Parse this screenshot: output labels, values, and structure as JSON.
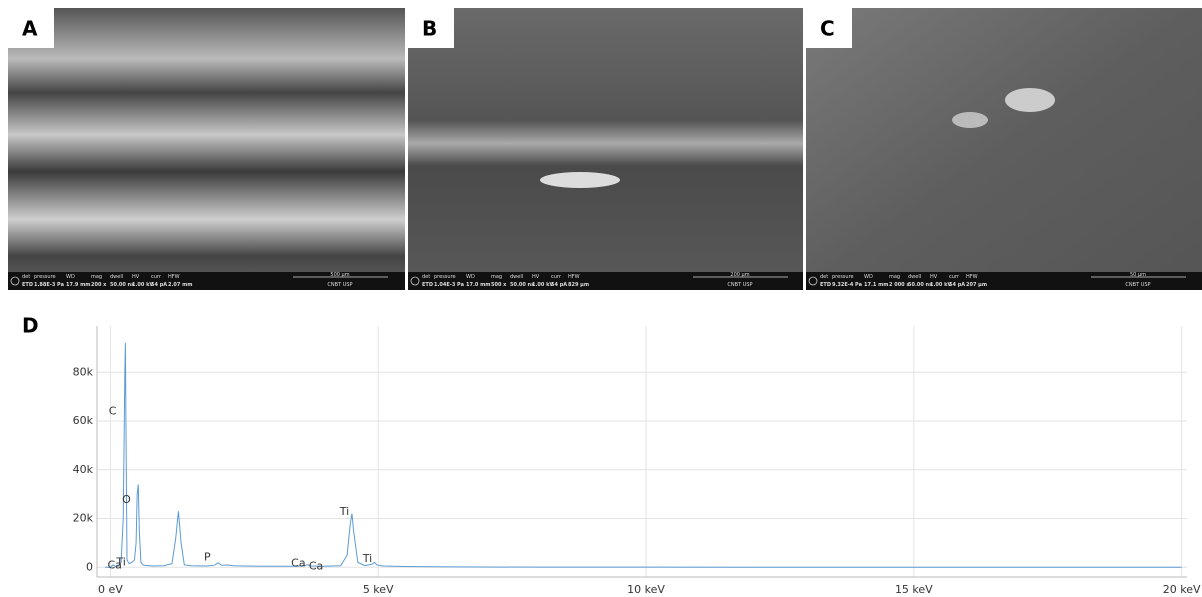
{
  "panels": [
    {
      "label": "A",
      "info_header": [
        "det",
        "pressure",
        "WD",
        "mag",
        "dwell",
        "HV",
        "curr",
        "HFW"
      ],
      "info_values": [
        "ETD",
        "1.88E-3 Pa",
        "17.9 mm",
        "200 x",
        "50.00 ns",
        "1.00 kV",
        "54 pA",
        "2.07 mm"
      ],
      "scale": "500 µm",
      "facility": "CNBT USP"
    },
    {
      "label": "B",
      "info_header": [
        "det",
        "pressure",
        "WD",
        "mag",
        "dwell",
        "HV",
        "curr",
        "HFW"
      ],
      "info_values": [
        "ETD",
        "1.04E-3 Pa",
        "17.0 mm",
        "500 x",
        "50.00 ns",
        "1.00 kV",
        "54 pA",
        "829 µm"
      ],
      "scale": "200 µm",
      "facility": "CNBT USP"
    },
    {
      "label": "C",
      "info_header": [
        "det",
        "pressure",
        "WD",
        "mag",
        "dwell",
        "HV",
        "curr",
        "HFW"
      ],
      "info_values": [
        "ETD",
        "9.32E-4 Pa",
        "17.1 mm",
        "2 000 x",
        "50.00 ns",
        "1.00 kV",
        "54 pA",
        "207 µm"
      ],
      "scale": "50 µm",
      "facility": "CNBT USP"
    }
  ],
  "chart_data": {
    "type": "line",
    "panel_label": "D",
    "x": [
      -0.1,
      0.0,
      0.05,
      0.1,
      0.15,
      0.2,
      0.24,
      0.27,
      0.28,
      0.29,
      0.31,
      0.35,
      0.4,
      0.45,
      0.48,
      0.5,
      0.52,
      0.54,
      0.57,
      0.62,
      0.8,
      1.0,
      1.15,
      1.22,
      1.27,
      1.32,
      1.38,
      1.5,
      1.8,
      1.95,
      2.01,
      2.08,
      2.2,
      2.3,
      2.5,
      3.0,
      3.5,
      3.65,
      3.69,
      3.75,
      4.0,
      4.3,
      4.42,
      4.48,
      4.51,
      4.54,
      4.62,
      4.75,
      4.88,
      4.93,
      4.98,
      5.1,
      5.5,
      6.0,
      7.0,
      8.0,
      10.0,
      12.0,
      15.0,
      18.0,
      20.0
    ],
    "series": [
      {
        "color": "#5b9bd5",
        "values": [
          0,
          0,
          1000,
          300,
          500,
          2000,
          20000,
          80000,
          92000,
          60000,
          3000,
          1500,
          2000,
          3000,
          10000,
          30000,
          34000,
          15000,
          2000,
          800,
          500,
          600,
          1500,
          12000,
          23000,
          10000,
          1000,
          600,
          500,
          900,
          1800,
          800,
          900,
          600,
          500,
          400,
          400,
          800,
          1000,
          500,
          400,
          600,
          5000,
          18000,
          22000,
          15000,
          2000,
          700,
          1200,
          2000,
          900,
          500,
          300,
          200,
          100,
          50,
          30,
          20,
          10,
          10,
          0
        ]
      }
    ],
    "xlim": [
      -0.25,
      20.1
    ],
    "xticks": [
      {
        "value": 0,
        "label": "0 eV"
      },
      {
        "value": 5,
        "label": "5 keV"
      },
      {
        "value": 10,
        "label": "10 keV"
      },
      {
        "value": 15,
        "label": "15 keV"
      },
      {
        "value": 20,
        "label": "20 keV"
      }
    ],
    "ylim": [
      -4000,
      99000
    ],
    "yticks": [
      0,
      {
        "value": 20000,
        "label": "20k"
      },
      {
        "value": 40000,
        "label": "40k"
      },
      {
        "value": 60000,
        "label": "60k"
      },
      {
        "value": 80000,
        "label": "80k"
      }
    ],
    "grid": true,
    "annotations": [
      {
        "text": "C",
        "x": 0.04,
        "y": 64000
      },
      {
        "text": "O",
        "x": 0.3,
        "y": 27600
      },
      {
        "text": "Ca",
        "x": 0.08,
        "y": 800
      },
      {
        "text": "Ti",
        "x": 0.2,
        "y": 2000
      },
      {
        "text": "P",
        "x": 1.81,
        "y": 4000
      },
      {
        "text": "Ca",
        "x": 3.51,
        "y": 1600
      },
      {
        "text": "Ca",
        "x": 3.84,
        "y": 400
      },
      {
        "text": "Ti",
        "x": 4.37,
        "y": 22700
      },
      {
        "text": "Ti",
        "x": 4.8,
        "y": 3300
      }
    ]
  }
}
